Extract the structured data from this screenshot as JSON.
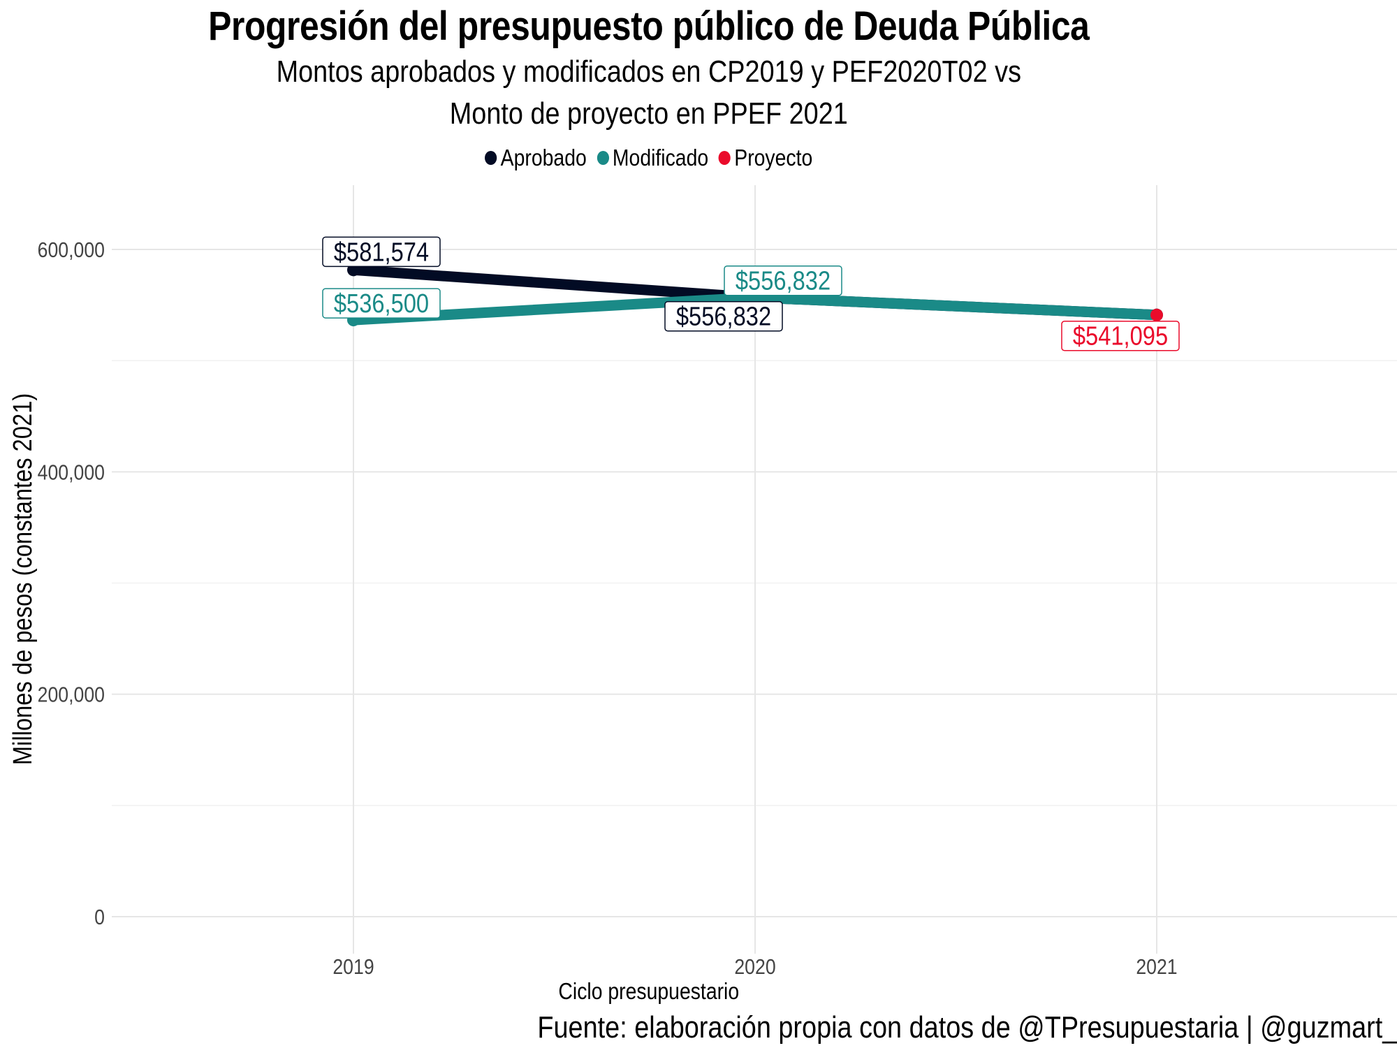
{
  "title": "Progresión del presupuesto público de Deuda Pública",
  "subtitle_line1": "Montos aprobados y modificados en CP2019 y PEF2020T02 vs",
  "subtitle_line2": "Monto de proyecto en PPEF 2021",
  "caption": "Fuente: elaboración propia con datos de @TPresupuestaria | @guzmart_",
  "legend": [
    {
      "label": "Aprobado",
      "color": "#020b24"
    },
    {
      "label": "Modificado",
      "color": "#1a8a87"
    },
    {
      "label": "Proyecto",
      "color": "#ea0b2b"
    }
  ],
  "chart_data": {
    "type": "line",
    "title": "Progresión del presupuesto público de Deuda Pública",
    "xlabel": "Ciclo presupuestario",
    "ylabel": "Millones de pesos (constantes 2021)",
    "categories": [
      "2019",
      "2020",
      "2021"
    ],
    "ylim": [
      0,
      600000
    ],
    "yticks": [
      0,
      200000,
      400000,
      600000
    ],
    "ytick_labels": [
      "0",
      "200,000",
      "400,000",
      "600,000"
    ],
    "grid": true,
    "legend_position": "top",
    "series": [
      {
        "name": "Aprobado",
        "color": "#020b24",
        "points": [
          {
            "x": "2019",
            "y": 581574,
            "label": "$581,574"
          },
          {
            "x": "2020",
            "y": 556832,
            "label": "$556,832"
          },
          {
            "x": "2021",
            "y": 541095,
            "label": null
          }
        ]
      },
      {
        "name": "Modificado",
        "color": "#1a8a87",
        "points": [
          {
            "x": "2019",
            "y": 536500,
            "label": "$536,500"
          },
          {
            "x": "2020",
            "y": 556832,
            "label": "$556,832"
          },
          {
            "x": "2021",
            "y": 541095,
            "label": null
          }
        ]
      },
      {
        "name": "Proyecto",
        "color": "#ea0b2b",
        "points": [
          {
            "x": "2021",
            "y": 541095,
            "label": "$541,095"
          }
        ]
      }
    ]
  }
}
